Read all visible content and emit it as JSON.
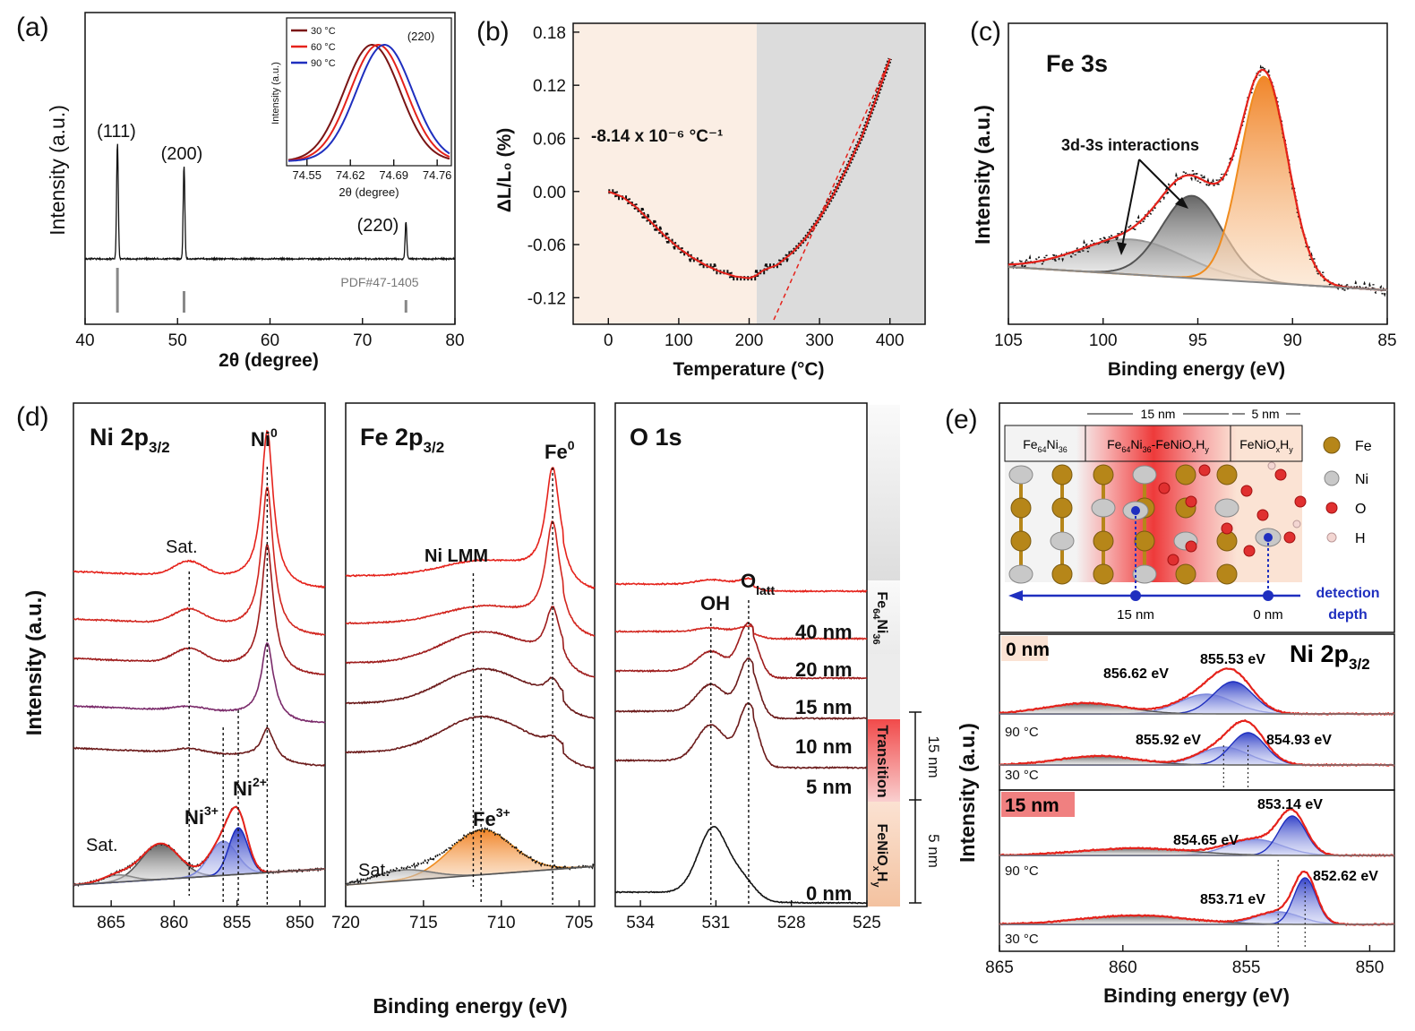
{
  "figure": {
    "panel_labels": [
      "(a)",
      "(b)",
      "(c)",
      "(d)",
      "(e)"
    ]
  },
  "colors": {
    "red": "#e5221b",
    "dark_red": "#7a1414",
    "maroon": "#6b1a1a",
    "blue": "#1f2fbf",
    "orange": "#f08c1e",
    "gray": "#7f7f7f",
    "peach": "#fbeee4",
    "light_gray": "#dcdcdc"
  },
  "chart_data": [
    {
      "panel": "(a)",
      "type": "line",
      "xlabel": "2θ (degree)",
      "ylabel": "Intensity (a.u.)",
      "xlim": [
        40,
        80
      ],
      "xticks": [
        "40",
        "50",
        "60",
        "70",
        "80"
      ],
      "peaks": [
        {
          "label": "(111)",
          "x": 43.5
        },
        {
          "label": "(200)",
          "x": 50.7
        },
        {
          "label": "(220)",
          "x": 74.7
        }
      ],
      "reference_label": "PDF#47-1405",
      "reference_lines": [
        43.5,
        50.7,
        74.7
      ],
      "inset": {
        "title": "(220)",
        "xlabel": "2θ (degree)",
        "ylabel": "Intensity (a.u.)",
        "xticks": [
          "74.55",
          "74.62",
          "74.69",
          "74.76"
        ],
        "xlim": [
          74.52,
          74.78
        ],
        "legend": [
          "30 °C",
          "60 °C",
          "90 °C"
        ],
        "centers": [
          74.655,
          74.665,
          74.675
        ]
      }
    },
    {
      "panel": "(b)",
      "type": "line",
      "xlabel": "Temperature (°C)",
      "ylabel": "ΔL/L₀ (%)",
      "annotation": "-8.14 x 10⁻⁶ °C⁻¹",
      "xlim": [
        -50,
        450
      ],
      "ylim": [
        -0.15,
        0.19
      ],
      "xticks": [
        "0",
        "100",
        "200",
        "300",
        "400"
      ],
      "yticks": [
        "-0.12",
        "-0.06",
        "0.00",
        "0.06",
        "0.12",
        "0.18"
      ],
      "x": [
        0,
        20,
        40,
        60,
        80,
        100,
        120,
        140,
        160,
        180,
        200,
        210,
        220,
        240,
        260,
        280,
        300,
        320,
        340,
        360,
        380,
        400
      ],
      "y": [
        0.0,
        -0.006,
        -0.018,
        -0.034,
        -0.05,
        -0.064,
        -0.075,
        -0.084,
        -0.091,
        -0.096,
        -0.098,
        -0.095,
        -0.089,
        -0.083,
        -0.07,
        -0.053,
        -0.03,
        -0.003,
        0.028,
        0.062,
        0.104,
        0.15
      ],
      "linear_fit": {
        "x": [
          235,
          400
        ],
        "y": [
          -0.145,
          0.15
        ]
      }
    },
    {
      "panel": "(c)",
      "type": "line",
      "title": "Fe 3s",
      "xlabel": "Binding energy (eV)",
      "ylabel": "Intensity (a.u.)",
      "xlim": [
        105,
        85
      ],
      "xticks": [
        "105",
        "100",
        "95",
        "90",
        "85"
      ],
      "annotation": "3d-3s interactions",
      "components": [
        {
          "center": 98.5,
          "height": 0.17,
          "width": 2.8
        },
        {
          "center": 95.3,
          "height": 0.4,
          "width": 1.6
        },
        {
          "center": 91.5,
          "height": 1.0,
          "width": 1.25
        }
      ]
    },
    {
      "panel": "(d)",
      "type": "line",
      "ylabel": "Intensity (a.u.)",
      "xlabel": "Binding energy (eV)",
      "depth_labels": [
        "40 nm",
        "20 nm",
        "15 nm",
        "10 nm",
        "5 nm",
        "0 nm"
      ],
      "region_labels": [
        "Fe64Ni36",
        "Transition",
        "FeNiOxHy"
      ],
      "depth_markers": [
        "15 nm",
        "5 nm"
      ],
      "subpanels": [
        {
          "title": "Ni 2p3/2",
          "xlim": [
            868,
            848
          ],
          "xticks": [
            "865",
            "860",
            "855",
            "850"
          ],
          "peak_labels": [
            "Ni⁰",
            "Sat.",
            "Ni³⁺",
            "Ni²⁺",
            "Sat."
          ],
          "peak_positions": [
            852.6,
            858.8,
            856.1,
            854.9,
            861.2
          ]
        },
        {
          "title": "Fe 2p3/2",
          "xlim": [
            720,
            704
          ],
          "xticks": [
            "720",
            "715",
            "710",
            "705"
          ],
          "peak_labels": [
            "Fe⁰",
            "Ni LMM",
            "Fe³⁺",
            "Sat."
          ],
          "peak_positions": [
            706.7,
            711.8,
            711.3,
            716.5
          ]
        },
        {
          "title": "O 1s",
          "xlim": [
            535,
            525
          ],
          "xticks": [
            "534",
            "531",
            "528",
            "525"
          ],
          "peak_labels": [
            "OH",
            "Olatt"
          ],
          "peak_positions": [
            531.2,
            529.7
          ]
        }
      ]
    },
    {
      "panel": "(e)",
      "type": "line",
      "schematic": {
        "layers": [
          "Fe64Ni36",
          "Fe64Ni36-FeNiOxHy",
          "FeNiOxHy"
        ],
        "thickness_labels": [
          "15 nm",
          "5 nm"
        ],
        "legend": [
          "Fe",
          "Ni",
          "O",
          "H"
        ],
        "depth_axis_labels": [
          "15 nm",
          "0 nm"
        ],
        "depth_axis_title": "detection depth"
      },
      "title": "Ni 2p3/2",
      "xlabel": "Binding energy (eV)",
      "ylabel": "Intensity (a.u.)",
      "xlim": [
        865,
        849
      ],
      "xticks": [
        "865",
        "860",
        "855",
        "850"
      ],
      "blocks": [
        {
          "label": "0 nm",
          "traces": [
            {
              "temp": "90 °C",
              "peaks": [
                {
                  "label": "856.62 eV",
                  "x": 856.62
                },
                {
                  "label": "855.53 eV",
                  "x": 855.53
                }
              ]
            },
            {
              "temp": "30 °C",
              "peaks": [
                {
                  "label": "855.92 eV",
                  "x": 855.92
                },
                {
                  "label": "854.93 eV",
                  "x": 854.93
                }
              ]
            }
          ]
        },
        {
          "label": "15 nm",
          "traces": [
            {
              "temp": "90 °C",
              "peaks": [
                {
                  "label": "854.65 eV",
                  "x": 854.65
                },
                {
                  "label": "853.14 eV",
                  "x": 853.14
                }
              ]
            },
            {
              "temp": "30 °C",
              "peaks": [
                {
                  "label": "853.71 eV",
                  "x": 853.71
                },
                {
                  "label": "852.62 eV",
                  "x": 852.62
                }
              ]
            }
          ]
        }
      ]
    }
  ]
}
